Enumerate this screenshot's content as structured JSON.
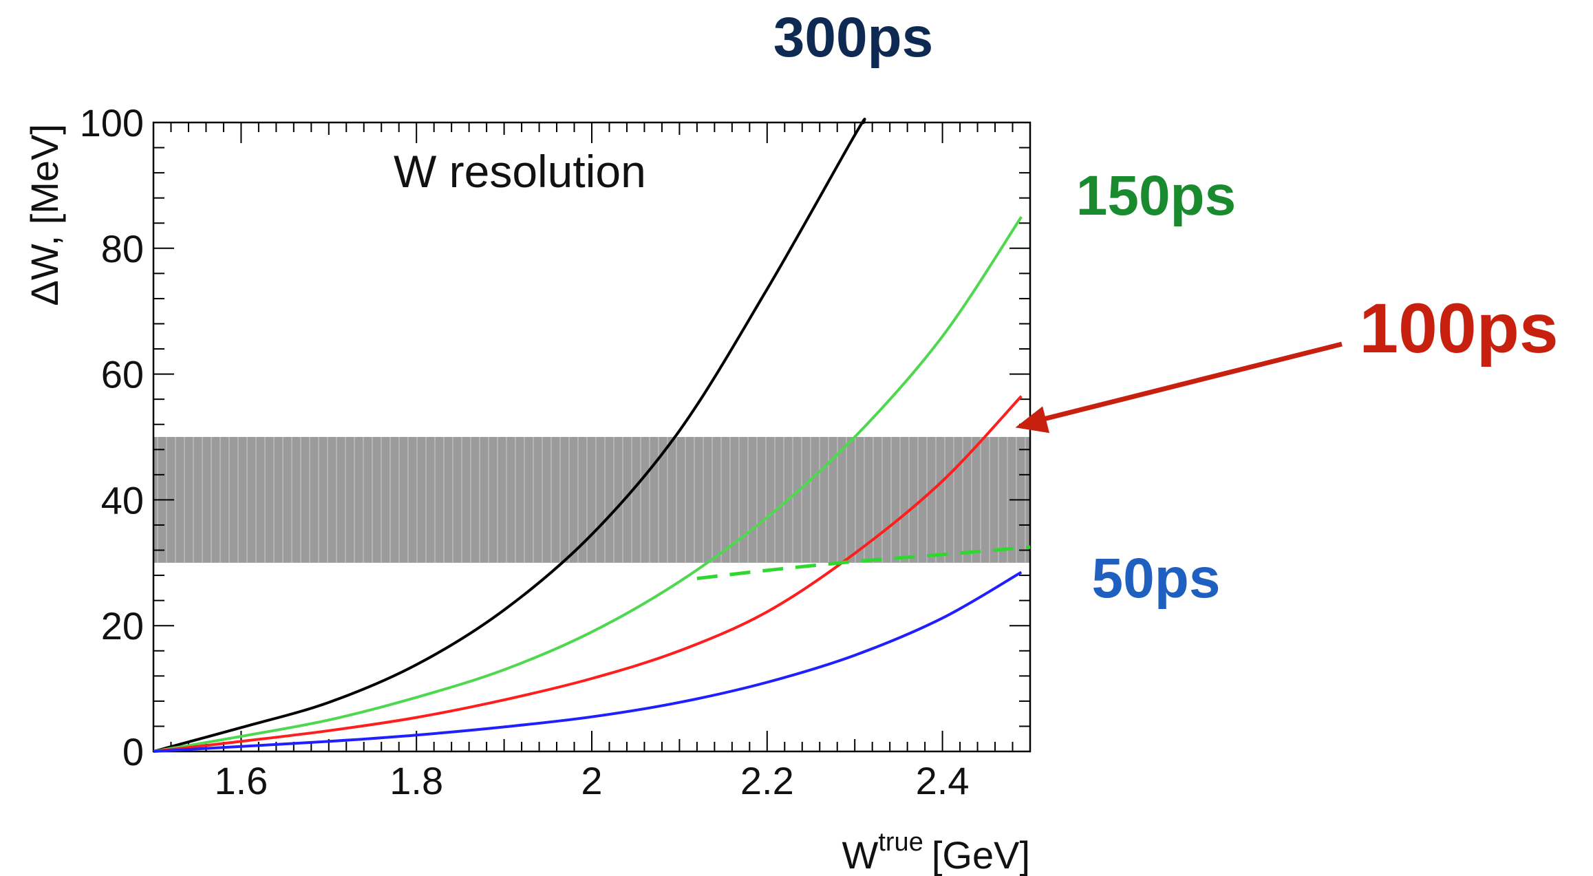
{
  "chart_data": {
    "type": "line",
    "title": "W resolution",
    "xlabel_main": "W",
    "xlabel_sup": "true",
    "xlabel_unit": "[GeV]",
    "ylabel": "ΔW, [MeV]",
    "xlim": [
      1.5,
      2.5
    ],
    "ylim": [
      0,
      100
    ],
    "x_ticks": [
      1.6,
      1.8,
      2.0,
      2.2,
      2.4
    ],
    "x_tick_labels": [
      "1.6",
      "1.8",
      "2",
      "2.2",
      "2.4"
    ],
    "y_ticks": [
      0,
      20,
      40,
      60,
      80,
      100
    ],
    "y_tick_labels": [
      "0",
      "20",
      "40",
      "60",
      "80",
      "100"
    ],
    "band": {
      "y0": 30,
      "y1": 50,
      "color": "#9b9b9b"
    },
    "series": [
      {
        "name": "300ps",
        "color": "#000000",
        "label_color": "#0f2a52",
        "x": [
          1.5,
          1.6,
          1.7,
          1.8,
          1.9,
          2.0,
          2.1,
          2.2,
          2.3,
          2.31
        ],
        "y": [
          0,
          3.8,
          7.8,
          13.8,
          22.5,
          34.5,
          51.0,
          73.5,
          98.0,
          100
        ]
      },
      {
        "name": "150ps",
        "color": "#4fd84f",
        "label_color": "#1a8a2e",
        "x": [
          1.5,
          1.6,
          1.7,
          1.8,
          1.9,
          2.0,
          2.1,
          2.2,
          2.3,
          2.4,
          2.49
        ],
        "y": [
          0,
          2.4,
          5.0,
          8.6,
          13.0,
          19.0,
          27.0,
          37.2,
          50.0,
          66.0,
          85.0
        ]
      },
      {
        "name": "100ps",
        "color": "#ff1e1e",
        "label_color": "#c8200f",
        "x": [
          1.5,
          1.6,
          1.7,
          1.8,
          1.9,
          2.0,
          2.1,
          2.2,
          2.3,
          2.4,
          2.49
        ],
        "y": [
          0,
          1.6,
          3.3,
          5.4,
          8.2,
          11.6,
          16.0,
          22.2,
          31.5,
          43.0,
          56.5
        ]
      },
      {
        "name": "50ps",
        "color": "#1f1fff",
        "label_color": "#1f5fbf",
        "x": [
          1.5,
          1.6,
          1.7,
          1.8,
          1.9,
          2.0,
          2.1,
          2.2,
          2.3,
          2.4,
          2.49
        ],
        "y": [
          0,
          0.8,
          1.6,
          2.6,
          3.9,
          5.5,
          7.8,
          11.0,
          15.3,
          21.2,
          28.5
        ]
      }
    ],
    "dashed_series": {
      "color": "#2fd82f",
      "x": [
        2.12,
        2.2,
        2.3,
        2.4,
        2.5
      ],
      "y": [
        27.5,
        28.8,
        30.2,
        31.3,
        32.5
      ]
    },
    "arrow": {
      "color": "#c8200f",
      "tip_x": 2.48,
      "tip_y": 51.5
    }
  }
}
